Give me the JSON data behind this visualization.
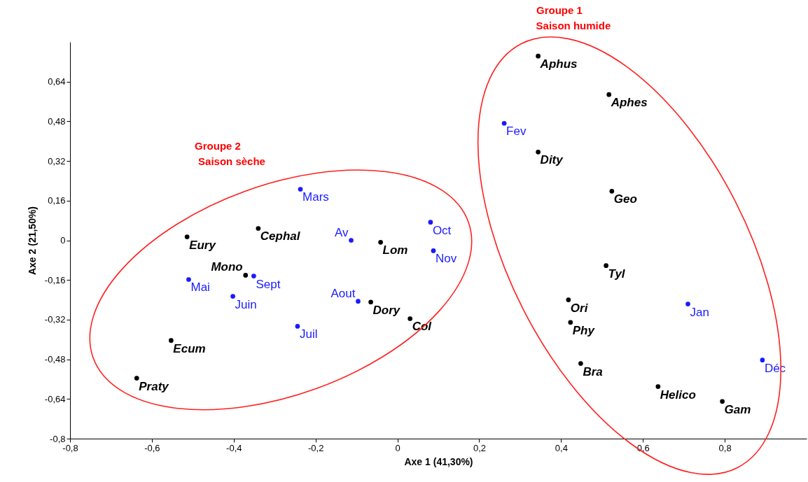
{
  "chart_data": {
    "type": "scatter",
    "xlabel": "Axe 1 (41,30%)",
    "ylabel": "Axe 2 (21,50%)",
    "annotations": [
      "Groupe 1\nSaison humide",
      "Groupe 2\nSaison sèche"
    ],
    "xlim": [
      -0.8,
      1.0
    ],
    "ylim": [
      -0.8,
      0.8
    ],
    "xticks": [
      {
        "value": -0.8,
        "label": "-0,8"
      },
      {
        "value": -0.6,
        "label": "-0,6"
      },
      {
        "value": -0.4,
        "label": "-0,4"
      },
      {
        "value": -0.2,
        "label": "-0,2"
      },
      0,
      {
        "value": 0.2,
        "label": "0,2"
      },
      {
        "value": 0.4,
        "label": "0,4"
      },
      {
        "value": 0.6,
        "label": "0,6"
      },
      {
        "value": 0.8,
        "label": "0,8"
      }
    ],
    "yticks": [
      {
        "value": -0.8,
        "label": "-0,8"
      },
      {
        "value": -0.64,
        "label": "-0,64"
      },
      {
        "value": -0.48,
        "label": "-0,48"
      },
      {
        "value": -0.32,
        "label": "-0,32"
      },
      {
        "value": -0.16,
        "label": "-0,16"
      },
      0,
      {
        "value": 0.16,
        "label": "0,16"
      },
      {
        "value": 0.32,
        "label": "0,32"
      },
      {
        "value": 0.48,
        "label": "0,48"
      },
      {
        "value": 0.64,
        "label": "0,64"
      }
    ],
    "grid": false,
    "legend": false,
    "marker": "circle",
    "series": [
      {
        "color": "#000000",
        "x": [
          0.344,
          0.517,
          0.344,
          0.524,
          0.51,
          0.418,
          0.423,
          0.448,
          0.637,
          0.794,
          -0.514,
          -0.34,
          -0.041,
          -0.371,
          -0.065,
          0.031,
          -0.553,
          -0.637
        ],
        "values": [
          0.743,
          0.588,
          0.356,
          0.198,
          -0.102,
          -0.24,
          -0.331,
          -0.497,
          -0.59,
          -0.65,
          0.014,
          0.048,
          -0.008,
          -0.141,
          -0.249,
          -0.316,
          -0.404,
          -0.556
        ],
        "value_labels": [
          "Aphus",
          "Aphes",
          "Dity",
          "Geo",
          "Tyl",
          "Ori",
          "Phy",
          "Bra",
          "Helico",
          "Gam",
          "Eury",
          "Cephal",
          "Lom",
          "Mono",
          "Dory",
          "Col",
          "Ecum",
          "Praty"
        ]
      },
      {
        "color": "#1a1aff",
        "x": [
          0.261,
          -0.237,
          0.081,
          -0.113,
          0.088,
          -0.51,
          -0.351,
          -0.402,
          -0.096,
          -0.244,
          0.71,
          0.892
        ],
        "values": [
          0.472,
          0.206,
          0.073,
          0.0,
          -0.042,
          -0.158,
          -0.144,
          -0.226,
          -0.246,
          -0.347,
          -0.257,
          -0.483
        ],
        "value_labels": [
          "Fev",
          "Mars",
          "Oct",
          "Av",
          "Nov",
          "Mai",
          "Sept",
          "Juin",
          "Aout",
          "Juil",
          "Jan",
          "Déc"
        ]
      }
    ]
  }
}
